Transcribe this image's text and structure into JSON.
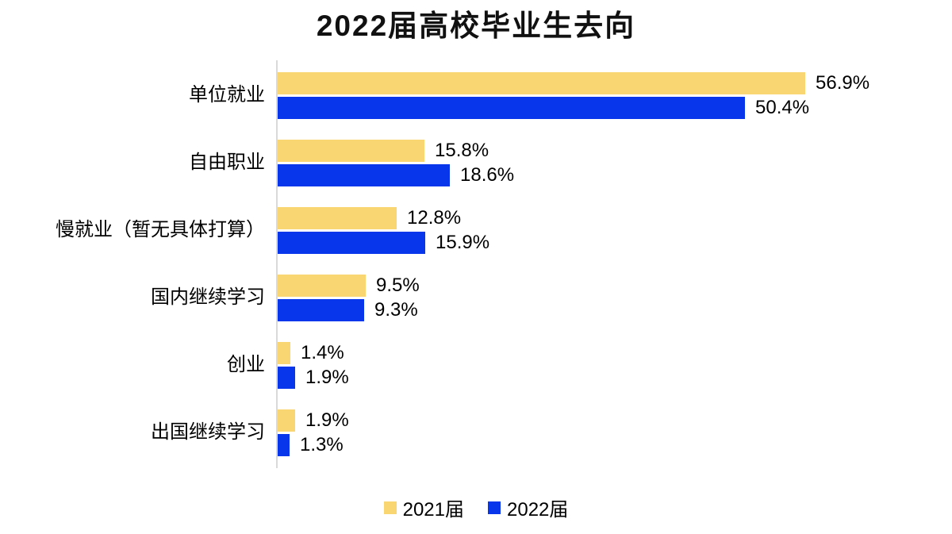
{
  "chart_data": {
    "type": "bar",
    "orientation": "horizontal",
    "title": "2022届高校毕业生去向",
    "categories": [
      "单位就业",
      "自由职业",
      "慢就业（暂无具体打算）",
      "国内继续学习",
      "创业",
      "出国继续学习"
    ],
    "series": [
      {
        "name": "2021届",
        "color": "#FAD673",
        "values": [
          56.9,
          15.8,
          12.8,
          9.5,
          1.4,
          1.9
        ],
        "labels": [
          "56.9%",
          "15.8%",
          "12.8%",
          "9.5%",
          "1.4%",
          "1.9%"
        ]
      },
      {
        "name": "2022届",
        "color": "#0837EB",
        "values": [
          50.4,
          18.6,
          15.9,
          9.3,
          1.9,
          1.3
        ],
        "labels": [
          "50.4%",
          "18.6%",
          "15.9%",
          "9.3%",
          "1.9%",
          "1.3%"
        ]
      }
    ],
    "value_suffix": "%",
    "xlim": [
      0,
      60
    ],
    "grid": false,
    "legend_position": "bottom",
    "axis_line_color": "#d9d9d9",
    "text_color": "#000000",
    "background_color": "#ffffff"
  }
}
